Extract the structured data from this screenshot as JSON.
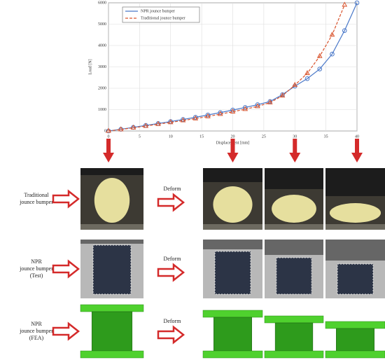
{
  "chart_data": {
    "type": "line",
    "xlabel": "Displacement [mm]",
    "ylabel": "Load [N]",
    "x": [
      0,
      2,
      4,
      6,
      8,
      10,
      12,
      14,
      16,
      18,
      20,
      22,
      24,
      26,
      28,
      30,
      32,
      34,
      36,
      38,
      40
    ],
    "series": [
      {
        "name": "NPR jounce bumper",
        "color": "#4a78c8",
        "marker": "circle",
        "dashed": false,
        "values": [
          0,
          80,
          170,
          260,
          350,
          440,
          540,
          640,
          750,
          860,
          980,
          1100,
          1230,
          1380,
          1700,
          2100,
          2450,
          2900,
          3600,
          4700,
          6000
        ]
      },
      {
        "name": "Traditional jounce bumper",
        "color": "#d9532c",
        "marker": "triangle",
        "dashed": true,
        "values": [
          0,
          70,
          150,
          230,
          320,
          400,
          490,
          580,
          680,
          790,
          900,
          1020,
          1150,
          1330,
          1650,
          2150,
          2700,
          3500,
          4500,
          5900,
          null
        ]
      }
    ],
    "xlim": [
      0,
      40
    ],
    "xticks": [
      0,
      5,
      10,
      15,
      20,
      25,
      30,
      35,
      40
    ],
    "ylim": [
      0,
      6000
    ],
    "yticks": [
      0,
      1000,
      2000,
      3000,
      4000,
      5000,
      6000
    ],
    "grid": true,
    "legend": "upper left"
  },
  "rows": [
    {
      "label": [
        "Traditional",
        "jounce bumper"
      ],
      "action": "Deform"
    },
    {
      "label": [
        "NPR",
        "jounce bumper",
        "(Test)"
      ],
      "action": "Deform"
    },
    {
      "label": [
        "NPR",
        "jounce bumper",
        "(FEA)"
      ],
      "action": "Deform"
    }
  ]
}
